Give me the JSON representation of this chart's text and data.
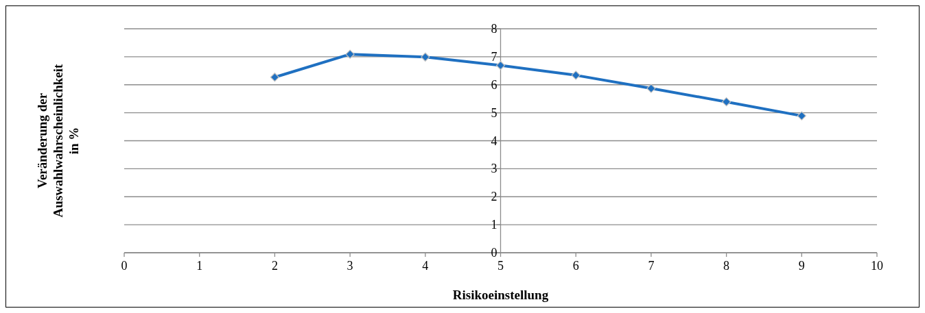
{
  "chart_data": {
    "type": "line",
    "xlabel": "Risikoeinstellung",
    "ylabel": "Veränderung der Auswahlwahrscheinlichkeit in %",
    "x": [
      2,
      3,
      4,
      5,
      6,
      7,
      8,
      9
    ],
    "series": [
      {
        "color": "#1f70c1",
        "values": [
          6.27,
          7.09,
          6.99,
          6.69,
          6.34,
          5.87,
          5.39,
          4.89
        ]
      }
    ],
    "xlim": [
      0,
      10
    ],
    "xticks": [
      0,
      1,
      2,
      3,
      4,
      5,
      6,
      7,
      8,
      9,
      10
    ],
    "ylim": [
      0,
      8
    ],
    "yticks": [
      0,
      1,
      2,
      3,
      4,
      5,
      6,
      7,
      8
    ],
    "grid": "y",
    "marker": "diamond",
    "line_style": "solid"
  }
}
